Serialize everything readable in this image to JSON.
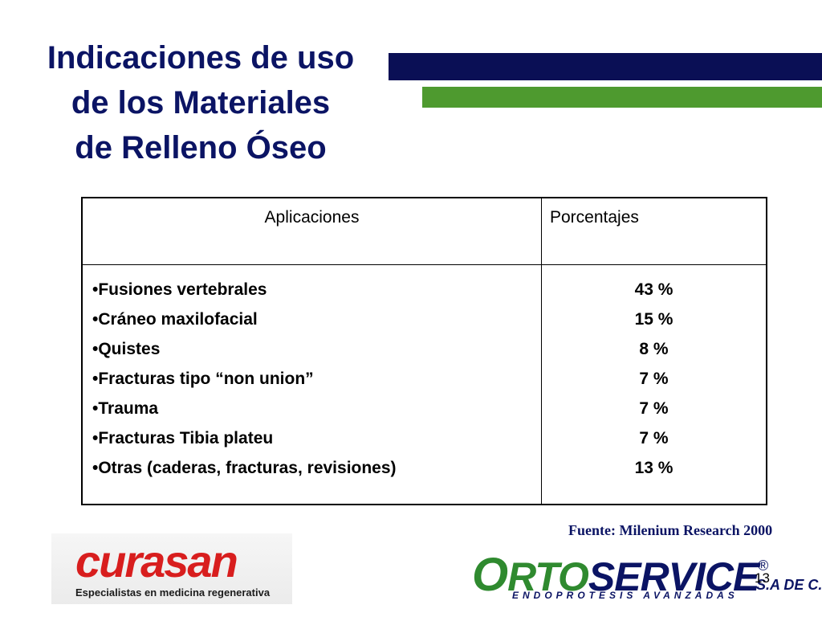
{
  "title": "Indicaciones  de uso\nde los Materiales\nde  Relleno Óseo",
  "colors": {
    "title": "#0b1464",
    "bar_navy": "#0a0f55",
    "bar_green": "#4e9a2f"
  },
  "table": {
    "headers": [
      "Aplicaciones",
      "Porcentajes"
    ],
    "rows": [
      {
        "application": "•Fusiones vertebrales",
        "percent": "43 %"
      },
      {
        "application": "•Cráneo maxilofacial",
        "percent": "15 %"
      },
      {
        "application": "•Quistes",
        "percent": "8 %"
      },
      {
        "application": "•Fracturas tipo “non union”",
        "percent": "7 %"
      },
      {
        "application": "•Trauma",
        "percent": "7 %"
      },
      {
        "application": "•Fracturas Tibia plateu",
        "percent": "7 %"
      },
      {
        "application": "•Otras (caderas, fracturas, revisiones)",
        "percent": "13 %"
      }
    ]
  },
  "source": "Fuente: Milenium Research 2000",
  "logos": {
    "curasan": {
      "name": "curasan",
      "tagline": "Especialistas en medicina regenerativa"
    },
    "ortoservice": {
      "o": "O",
      "rto": "RTO",
      "service": "SERVICE",
      "reg": "®",
      "tagline": "ENDOPROTESIS AVANZADAS",
      "suffix": "S.A DE C.V"
    }
  },
  "page_number": "13"
}
